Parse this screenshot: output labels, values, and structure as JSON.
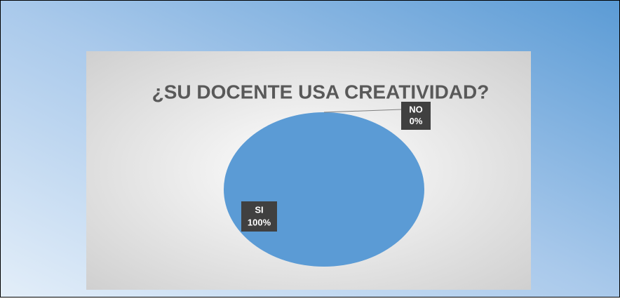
{
  "chart_data": {
    "type": "pie",
    "title": "¿SU DOCENTE USA CREATIVIDAD?",
    "categories": [
      "SI",
      "NO"
    ],
    "values": [
      100,
      0
    ],
    "value_labels": [
      "100%",
      "0%"
    ],
    "colors": [
      "#5b9bd5",
      "#ed7d31"
    ]
  }
}
